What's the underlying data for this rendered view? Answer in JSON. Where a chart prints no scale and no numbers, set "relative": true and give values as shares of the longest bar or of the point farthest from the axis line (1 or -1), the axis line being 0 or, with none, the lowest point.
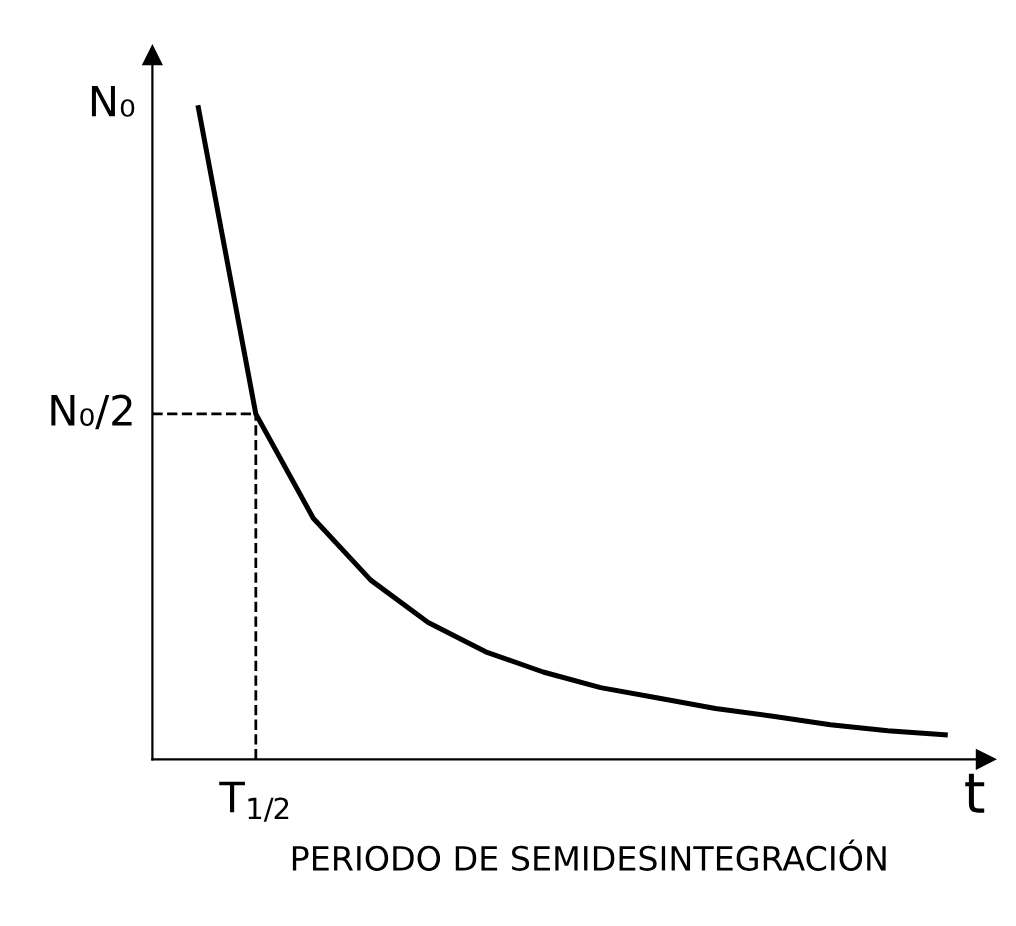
{
  "chart_data": {
    "type": "line",
    "xlabel": "t",
    "relative": true,
    "categories": [
      null,
      null,
      null,
      null,
      null,
      null,
      null,
      null,
      null,
      null,
      null,
      null,
      null,
      null
    ],
    "series": [
      {
        "color": "#000000",
        "values": [
          1,
          0.53,
          0.37,
          0.275,
          0.21,
          0.165,
          0.134,
          0.11,
          0.094,
          0.078,
          0.066,
          0.053,
          0.044,
          0.0375
        ]
      }
    ],
    "ref_lines": [
      {
        "axis": "y",
        "value": 0.53,
        "line_style": "dashed",
        "color": "#000000"
      }
    ],
    "annotations": [
      "N₀",
      "N₀/2",
      "T$_{1/2}$",
      "PERIODO DE SEMIDESINTEGRACIÓN"
    ],
    "legend": false,
    "marker": "none",
    "line_style": "solid"
  }
}
